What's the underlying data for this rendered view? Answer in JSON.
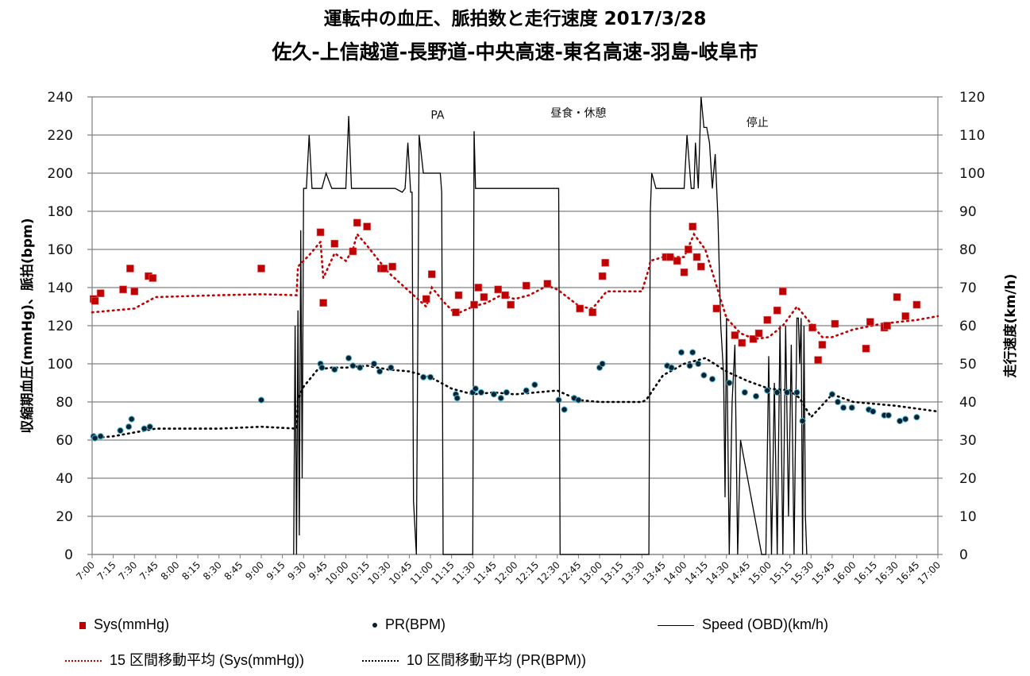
{
  "title_line1": "運転中の血圧、脈拍数と走行速度  2017/3/28",
  "title_line2": "佐久-上信越道-長野道-中央高速-東名高速-羽島-岐阜市",
  "colors": {
    "sys": "#c00000",
    "pr": "#0a2230",
    "pr_edge": "#4fb3d0",
    "speed": "#000000",
    "grid": "#808080"
  },
  "chart_data": {
    "type": "line",
    "title": "運転中の血圧、脈拍数と走行速度  2017/3/28",
    "subtitle": "佐久-上信越道-長野道-中央高速-東名高速-羽島-岐阜市",
    "ylabel": "収縮期血圧(mmHg)、脈拍(bpm)",
    "y2label": "走行速度(km/h)",
    "ylim": [
      0,
      240
    ],
    "y2lim": [
      0,
      120
    ],
    "yticks": [
      "0",
      "20",
      "40",
      "60",
      "80",
      "100",
      "120",
      "140",
      "160",
      "180",
      "200",
      "220",
      "240"
    ],
    "y2ticks": [
      "0",
      "10",
      "20",
      "30",
      "40",
      "50",
      "60",
      "70",
      "80",
      "90",
      "100",
      "110",
      "120"
    ],
    "xticks": [
      "7:00",
      "7:15",
      "7:30",
      "7:45",
      "8:00",
      "8:15",
      "8:30",
      "8:45",
      "9:00",
      "9:15",
      "9:30",
      "9:45",
      "10:00",
      "10:15",
      "10:30",
      "10:45",
      "11:00",
      "11:15",
      "11:30",
      "11:45",
      "12:00",
      "12:15",
      "12:30",
      "12:45",
      "13:00",
      "13:15",
      "13:30",
      "13:45",
      "14:00",
      "14:15",
      "14:30",
      "14:45",
      "15:00",
      "15:15",
      "15:30",
      "15:45",
      "16:00",
      "16:15",
      "16:30",
      "16:45",
      "17:00"
    ],
    "grid": true,
    "legend_position": "bottom",
    "annotations": [
      {
        "text": "PA",
        "time": "11:05",
        "value": 231
      },
      {
        "text": "昼食・休憩",
        "time": "12:45",
        "value": 232
      },
      {
        "text": "停止",
        "time": "14:52",
        "value": 227
      }
    ],
    "series": [
      {
        "name": "Sys(mmHg)",
        "axis": "left",
        "kind": "scatter-square",
        "x": [
          "7:01",
          "7:02",
          "7:06",
          "7:22",
          "7:27",
          "7:30",
          "7:40",
          "7:43",
          "9:00",
          "9:42",
          "9:44",
          "9:52",
          "10:05",
          "10:08",
          "10:15",
          "10:25",
          "10:27",
          "10:33",
          "10:57",
          "11:01",
          "11:18",
          "11:20",
          "11:31",
          "11:34",
          "11:38",
          "11:48",
          "11:53",
          "11:57",
          "12:08",
          "12:23",
          "12:46",
          "12:55",
          "13:02",
          "13:04",
          "13:47",
          "13:50",
          "13:55",
          "14:00",
          "14:03",
          "14:06",
          "14:09",
          "14:12",
          "14:23",
          "14:36",
          "14:41",
          "14:49",
          "14:53",
          "14:59",
          "15:06",
          "15:10",
          "15:31",
          "15:35",
          "15:38",
          "15:47",
          "16:09",
          "16:12",
          "16:22",
          "16:24",
          "16:31",
          "16:37",
          "16:45"
        ],
        "values": [
          134,
          133,
          137,
          139,
          150,
          138,
          146,
          145,
          150,
          169,
          132,
          163,
          159,
          174,
          172,
          150,
          150,
          151,
          134,
          147,
          127,
          136,
          131,
          140,
          135,
          139,
          136,
          131,
          141,
          142,
          129,
          127,
          146,
          153,
          156,
          156,
          154,
          148,
          160,
          172,
          156,
          151,
          129,
          115,
          111,
          113,
          116,
          123,
          128,
          138,
          119,
          102,
          110,
          121,
          108,
          122,
          119,
          120,
          135,
          125,
          131
        ]
      },
      {
        "name": "PR(BPM)",
        "axis": "left",
        "kind": "scatter-dot",
        "x": [
          "7:01",
          "7:02",
          "7:06",
          "7:20",
          "7:26",
          "7:28",
          "7:37",
          "7:41",
          "9:00",
          "9:42",
          "9:43",
          "9:52",
          "10:02",
          "10:05",
          "10:10",
          "10:20",
          "10:24",
          "10:32",
          "10:55",
          "11:00",
          "11:18",
          "11:19",
          "11:30",
          "11:32",
          "11:36",
          "11:45",
          "11:50",
          "11:54",
          "12:08",
          "12:14",
          "12:31",
          "12:35",
          "12:42",
          "12:45",
          "13:00",
          "13:02",
          "13:48",
          "13:51",
          "13:58",
          "14:04",
          "14:06",
          "14:10",
          "14:14",
          "14:20",
          "14:32",
          "14:43",
          "14:51",
          "14:59",
          "15:06",
          "15:13",
          "15:20",
          "15:24",
          "15:45",
          "15:49",
          "15:53",
          "15:59",
          "16:11",
          "16:14",
          "16:22",
          "16:25",
          "16:33",
          "16:37",
          "16:45"
        ],
        "values": [
          62,
          61,
          62,
          65,
          67,
          71,
          66,
          67,
          81,
          100,
          98,
          97,
          103,
          99,
          98,
          100,
          96,
          98,
          93,
          93,
          84,
          82,
          85,
          87,
          85,
          84,
          82,
          85,
          86,
          89,
          81,
          76,
          82,
          81,
          98,
          100,
          99,
          98,
          106,
          99,
          106,
          100,
          94,
          92,
          90,
          85,
          83,
          86,
          85,
          85,
          85,
          70,
          84,
          80,
          77,
          77,
          76,
          75,
          73,
          73,
          70,
          71,
          72
        ]
      },
      {
        "name": "Speed (OBD)(km/h)",
        "axis": "right",
        "kind": "line",
        "x": [
          "9:23",
          "9:24",
          "9:25",
          "9:26",
          "9:27",
          "9:28",
          "9:29",
          "9:30",
          "9:32",
          "9:34",
          "9:36",
          "9:38",
          "9:40",
          "9:43",
          "9:46",
          "9:50",
          "9:55",
          "10:00",
          "10:02",
          "10:04",
          "10:06",
          "10:08",
          "10:12",
          "10:16",
          "10:20",
          "10:25",
          "10:30",
          "10:35",
          "10:40",
          "10:42",
          "10:44",
          "10:46",
          "10:47",
          "10:48",
          "10:50",
          "10:52",
          "10:55",
          "10:58",
          "11:00",
          "11:03",
          "11:05",
          "11:07",
          "11:08",
          "11:09",
          "11:30",
          "11:31",
          "11:32",
          "11:34",
          "11:36",
          "11:40",
          "11:45",
          "11:50",
          "11:55",
          "11:58",
          "12:00",
          "12:05",
          "12:10",
          "12:15",
          "12:20",
          "12:25",
          "12:30",
          "12:31",
          "12:32",
          "13:35",
          "13:36",
          "13:37",
          "13:40",
          "13:45",
          "13:50",
          "13:55",
          "14:00",
          "14:02",
          "14:05",
          "14:07",
          "14:08",
          "14:10",
          "14:12",
          "14:14",
          "14:16",
          "14:18",
          "14:20",
          "14:22",
          "14:24",
          "14:26",
          "14:28",
          "14:29",
          "14:30",
          "14:32",
          "14:34",
          "14:36",
          "14:38",
          "14:40",
          "14:55",
          "14:58",
          "15:00",
          "15:02",
          "15:04",
          "15:06",
          "15:08",
          "15:10",
          "15:12",
          "15:14",
          "15:16",
          "15:18",
          "15:20",
          "15:21",
          "15:22",
          "15:23",
          "15:24",
          "15:25",
          "15:26",
          "15:27"
        ],
        "values": [
          0,
          60,
          0,
          64,
          5,
          85,
          20,
          96,
          96,
          110,
          96,
          96,
          96,
          96,
          100,
          96,
          96,
          96,
          115,
          96,
          96,
          96,
          96,
          96,
          96,
          96,
          96,
          96,
          95,
          96,
          108,
          95,
          95,
          14,
          0,
          110,
          100,
          100,
          100,
          100,
          100,
          100,
          95,
          0,
          0,
          111,
          96,
          96,
          96,
          96,
          96,
          96,
          96,
          96,
          96,
          96,
          96,
          96,
          96,
          96,
          96,
          96,
          0,
          0,
          90,
          100,
          96,
          96,
          96,
          96,
          96,
          110,
          96,
          96,
          108,
          96,
          120,
          112,
          112,
          108,
          96,
          105,
          88,
          60,
          47,
          15,
          62,
          0,
          40,
          55,
          0,
          30,
          0,
          0,
          52,
          0,
          45,
          0,
          60,
          0,
          60,
          10,
          55,
          0,
          62,
          62,
          50,
          62,
          0,
          60,
          10,
          0
        ]
      },
      {
        "name": "15 区間移動平均 (Sys(mmHg))",
        "axis": "left",
        "kind": "dotted-line",
        "x": [
          "7:00",
          "7:30",
          "7:35",
          "7:45",
          "8:30",
          "9:00",
          "9:25",
          "9:26",
          "9:34",
          "9:42",
          "9:44",
          "9:52",
          "10:00",
          "10:05",
          "10:08",
          "10:15",
          "10:30",
          "10:45",
          "10:57",
          "11:01",
          "11:10",
          "11:18",
          "11:30",
          "11:40",
          "11:50",
          "12:00",
          "12:10",
          "12:23",
          "12:30",
          "12:46",
          "12:55",
          "13:05",
          "13:30",
          "13:35",
          "13:36",
          "13:45",
          "14:00",
          "14:07",
          "14:15",
          "14:30",
          "14:40",
          "14:50",
          "15:00",
          "15:10",
          "15:20",
          "15:38",
          "15:45",
          "16:00",
          "16:20",
          "16:45",
          "17:00"
        ],
        "values": [
          127,
          129,
          131,
          135,
          136,
          136.5,
          136,
          151,
          157,
          164,
          145,
          158,
          154,
          160,
          168,
          162,
          148,
          138,
          130,
          140,
          132,
          126,
          130,
          132,
          136,
          134,
          136,
          141,
          139,
          130,
          129,
          138,
          138,
          150,
          154,
          156,
          156,
          168,
          160,
          124,
          116,
          113,
          114,
          120,
          130,
          114,
          114,
          118,
          121,
          123,
          125
        ]
      },
      {
        "name": "10 区間移動平均 (PR(BPM))",
        "axis": "left",
        "kind": "dotted-line",
        "x": [
          "7:00",
          "7:15",
          "7:30",
          "7:45",
          "8:30",
          "9:00",
          "9:25",
          "9:26",
          "9:30",
          "9:40",
          "9:50",
          "10:00",
          "10:15",
          "10:30",
          "10:45",
          "11:00",
          "11:15",
          "11:30",
          "11:45",
          "12:00",
          "12:15",
          "12:30",
          "12:45",
          "13:00",
          "13:30",
          "13:33",
          "13:45",
          "14:00",
          "14:15",
          "14:30",
          "14:45",
          "15:00",
          "15:15",
          "15:22",
          "15:30",
          "15:45",
          "16:00",
          "16:30",
          "17:00"
        ],
        "values": [
          61,
          62,
          64,
          66,
          66,
          67,
          66,
          81,
          88,
          97,
          98,
          98,
          99,
          97,
          96,
          93,
          87,
          84,
          85,
          84,
          85,
          86,
          81,
          80,
          80,
          81,
          94,
          100,
          103,
          96,
          91,
          87,
          86,
          82,
          72,
          84,
          80,
          78,
          75
        ]
      }
    ]
  },
  "legend": {
    "sys": "Sys(mmHg)",
    "pr": "PR(BPM)",
    "speed": "Speed (OBD)(km/h)",
    "sys_ma": "15 区間移動平均 (Sys(mmHg))",
    "pr_ma": "10 区間移動平均 (PR(BPM))"
  }
}
